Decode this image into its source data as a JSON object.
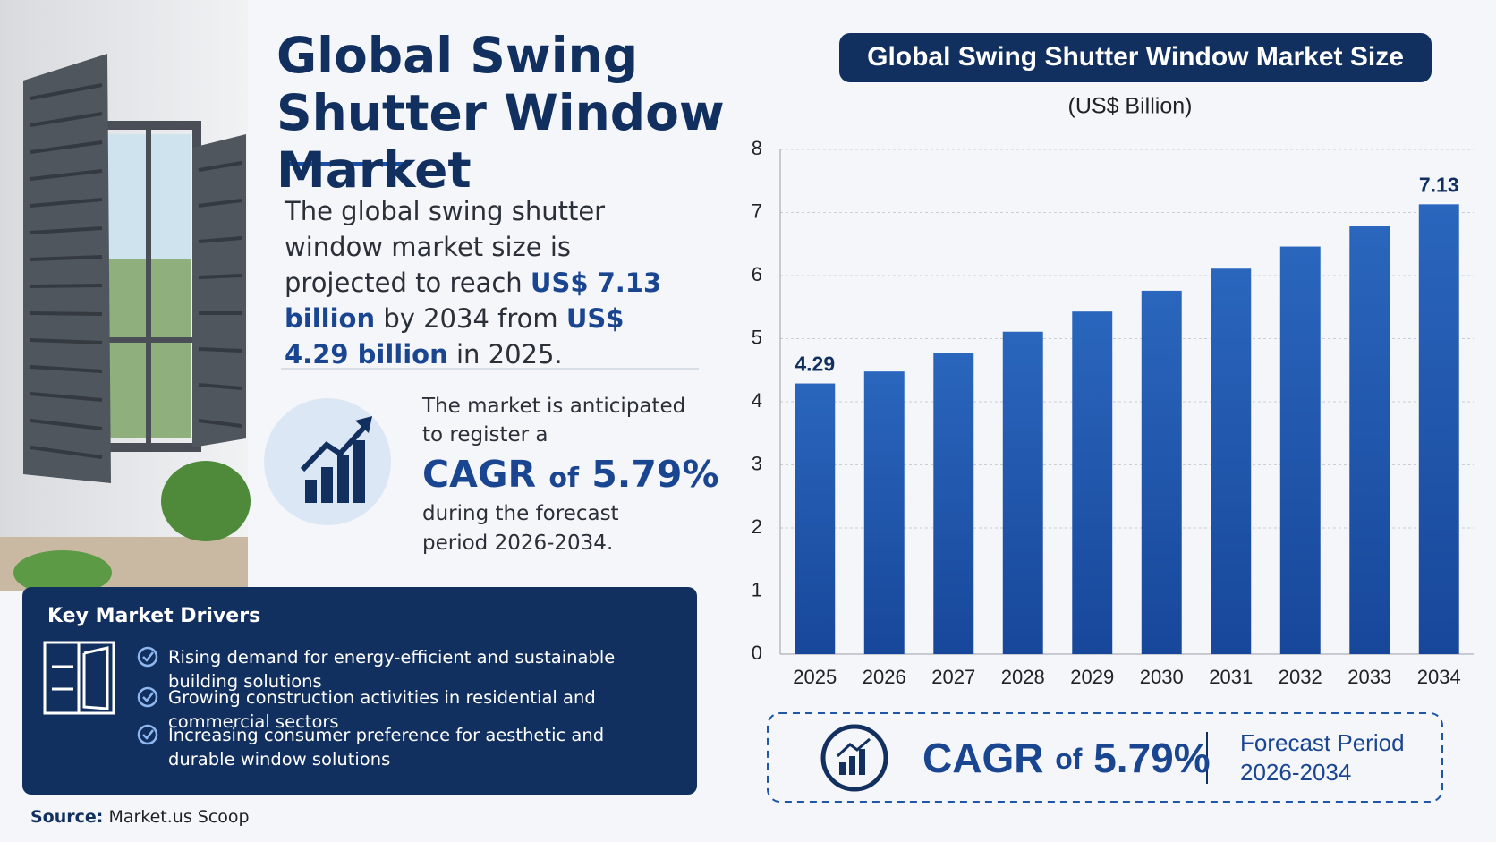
{
  "header": {
    "title": "Global Swing Shutter Window Market"
  },
  "summary": {
    "text_1": "The global swing shutter window market size is projected to reach",
    "highlight_1": "US$ 7.13 billion",
    "text_2": "by 2034 from",
    "highlight_2": "US$ 4.29 billion",
    "text_3": "in 2025."
  },
  "cagr_block": {
    "intro": "The market is anticipated to register a",
    "cagr_label": "CAGR",
    "of": "of",
    "cagr_value": "5.79%",
    "outro": "during the forecast period 2026-2034."
  },
  "drivers": {
    "title": "Key Market Drivers",
    "items": [
      "Rising demand for energy-efficient and sustainable building solutions",
      "Growing construction activities in residential and commercial sectors",
      "Increasing consumer preference for aesthetic and durable window solutions"
    ]
  },
  "source": {
    "label": "Source:",
    "value": "Market.us Scoop"
  },
  "cagr_footer": {
    "cagr_label": "CAGR",
    "of": "of",
    "cagr_value": "5.79%",
    "period_label": "Forecast Period",
    "period": "2026-2034"
  },
  "chart_data": {
    "type": "bar",
    "title": "Global Swing Shutter Window Market Size",
    "subtitle": "(US$ Billion)",
    "categories": [
      "2025",
      "2026",
      "2027",
      "2028",
      "2029",
      "2030",
      "2031",
      "2032",
      "2033",
      "2034"
    ],
    "values": [
      4.29,
      4.48,
      4.78,
      5.11,
      5.43,
      5.76,
      6.11,
      6.46,
      6.78,
      7.13
    ],
    "value_labels": [
      "4.29",
      null,
      null,
      null,
      null,
      null,
      null,
      null,
      null,
      "7.13"
    ],
    "color": "#1f56a8",
    "ylim": [
      0,
      8
    ],
    "yticks": [
      0,
      1,
      2,
      3,
      4,
      5,
      6,
      7,
      8
    ],
    "grid": true
  }
}
